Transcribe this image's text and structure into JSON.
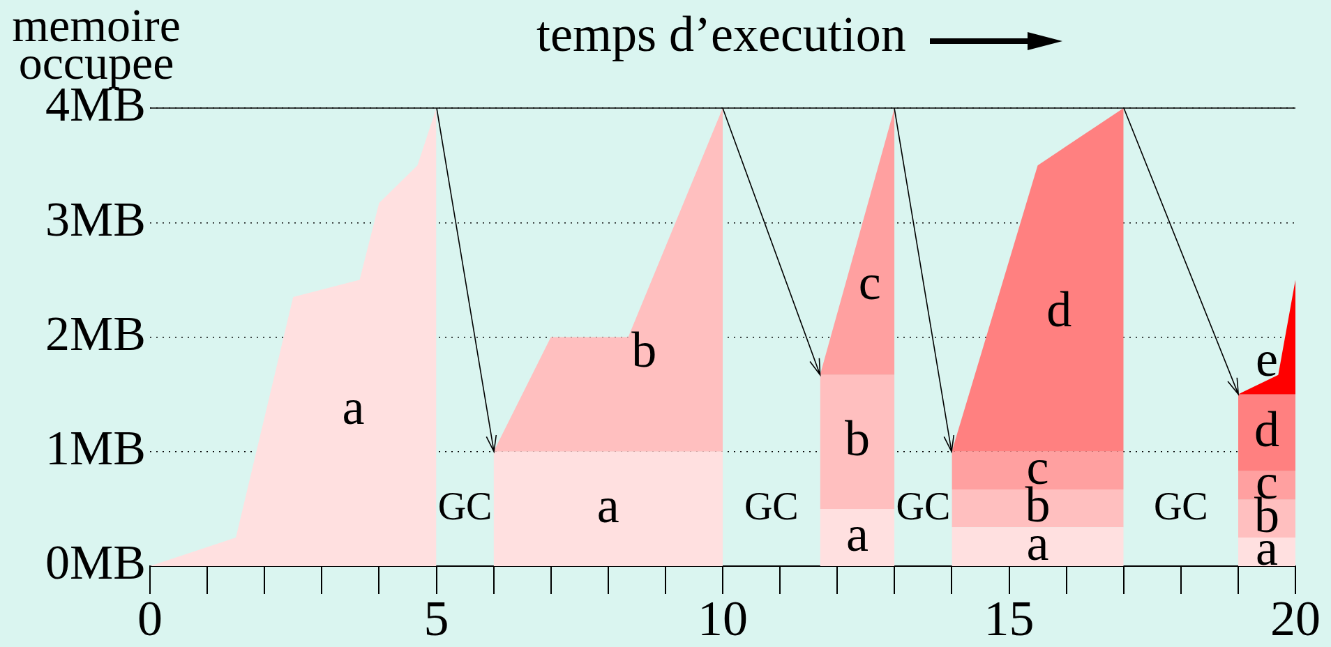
{
  "chart_data": {
    "type": "area",
    "xlabel": "temps d’execution",
    "ylabel": "memoire occupee",
    "stacked": true,
    "marker": "none",
    "grid": "y",
    "x": [
      0,
      1.5,
      2.5,
      3.66,
      4,
      4.67,
      5,
      5.5,
      6,
      7,
      8.35,
      10,
      10.8,
      11.7,
      13,
      13.5,
      14,
      15.5,
      17,
      18,
      19,
      19.7,
      20
    ],
    "series": [
      {
        "name": "a",
        "color": "#ffe0e0",
        "values": [
          0,
          0.25,
          2.35,
          2.5,
          3.17,
          3.5,
          4,
          null,
          1,
          1,
          1,
          1,
          null,
          0.5,
          0.5,
          null,
          0.34,
          0.34,
          0.34,
          null,
          0.25,
          0.25,
          0.25
        ]
      },
      {
        "name": "b",
        "color": "#ffbfbf",
        "values": [
          null,
          null,
          null,
          null,
          null,
          null,
          null,
          null,
          0,
          1,
          1,
          3,
          null,
          1.17,
          1.17,
          null,
          0.33,
          0.33,
          0.33,
          null,
          0.33,
          0.33,
          0.33
        ]
      },
      {
        "name": "c",
        "color": "#ffa0a0",
        "values": [
          null,
          null,
          null,
          null,
          null,
          null,
          null,
          null,
          null,
          null,
          null,
          null,
          null,
          0,
          2.33,
          null,
          0.33,
          0.33,
          0.33,
          null,
          0.25,
          0.25,
          0.25
        ]
      },
      {
        "name": "d",
        "color": "#ff8080",
        "values": [
          null,
          null,
          null,
          null,
          null,
          null,
          null,
          null,
          null,
          null,
          null,
          null,
          null,
          null,
          null,
          null,
          0,
          2.5,
          3,
          null,
          0.67,
          0.67,
          0.67
        ]
      },
      {
        "name": "e",
        "color": "#ff0000",
        "values": [
          null,
          null,
          null,
          null,
          null,
          null,
          null,
          null,
          null,
          null,
          null,
          null,
          null,
          null,
          null,
          null,
          null,
          null,
          null,
          null,
          0,
          0.17,
          1
        ]
      }
    ],
    "xlim": [
      0,
      20
    ],
    "xticks": [
      0,
      {
        "value": 1,
        "label": null
      },
      {
        "value": 2,
        "label": null
      },
      {
        "value": 3,
        "label": null
      },
      {
        "value": 4,
        "label": null
      },
      5,
      {
        "value": 6,
        "label": null
      },
      {
        "value": 7,
        "label": null
      },
      {
        "value": 8,
        "label": null
      },
      {
        "value": 9,
        "label": null
      },
      10,
      {
        "value": 11,
        "label": null
      },
      {
        "value": 12,
        "label": null
      },
      {
        "value": 13,
        "label": null
      },
      {
        "value": 14,
        "label": null
      },
      15,
      {
        "value": 16,
        "label": null
      },
      {
        "value": 17,
        "label": null
      },
      {
        "value": 18,
        "label": null
      },
      {
        "value": 19,
        "label": null
      },
      20
    ],
    "ylim": [
      0,
      4
    ],
    "yticks": [
      {
        "value": 0,
        "label": "0MB"
      },
      {
        "value": 1,
        "label": "1MB"
      },
      {
        "value": 2,
        "label": "2MB"
      },
      {
        "value": 3,
        "label": "3MB"
      },
      {
        "value": 4,
        "label": "4MB"
      }
    ],
    "ref_lines": [
      {
        "axis": "y",
        "value": 4,
        "color": "#000000",
        "line_style": "solid"
      }
    ],
    "annotations": [
      "GC",
      "GC",
      "GC",
      "GC"
    ]
  }
}
